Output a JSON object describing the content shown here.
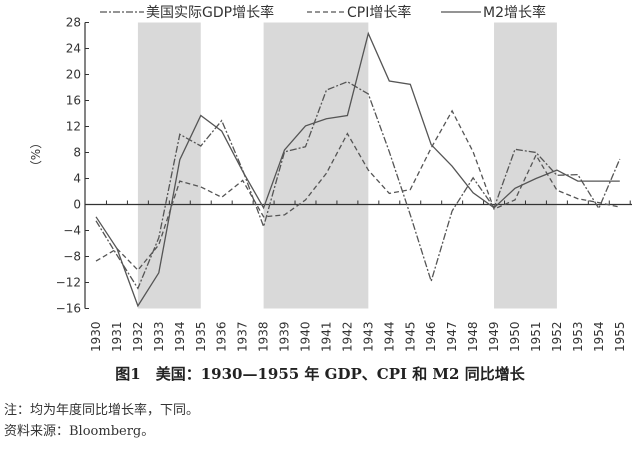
{
  "chart_data": {
    "type": "line",
    "title": "图1　美国：1930—1955 年 GDP、CPI 和 M2 同比增长",
    "xlabel": "",
    "ylabel": "（%）",
    "ylim": [
      -16,
      28
    ],
    "yticks": [
      28,
      24,
      20,
      16,
      12,
      8,
      4,
      0,
      -4,
      -8,
      -12,
      -16
    ],
    "grid": false,
    "legend_position": "top",
    "x": [
      1930,
      1931,
      1932,
      1933,
      1934,
      1935,
      1936,
      1937,
      1938,
      1939,
      1940,
      1941,
      1942,
      1943,
      1944,
      1945,
      1946,
      1947,
      1948,
      1949,
      1950,
      1951,
      1952,
      1953,
      1954,
      1955
    ],
    "shaded_periods": [
      [
        1932,
        1935
      ],
      [
        1938,
        1943
      ],
      [
        1949,
        1952
      ]
    ],
    "series": [
      {
        "name": "美国实际GDP增长率",
        "style": "dash-dot",
        "values": [
          -2.5,
          -7.8,
          -12.9,
          -5.1,
          10.8,
          9.0,
          12.9,
          5.3,
          -3.4,
          8.1,
          8.9,
          17.6,
          18.9,
          17.0,
          8.1,
          -1.6,
          -11.8,
          -1.0,
          4.1,
          -0.5,
          8.5,
          8.0,
          4.5,
          4.6,
          -0.6,
          7.0
        ]
      },
      {
        "name": "CPI增长率",
        "style": "dashed",
        "values": [
          -8.7,
          -6.8,
          -10.1,
          -6.2,
          3.6,
          2.7,
          1.1,
          3.7,
          -1.9,
          -1.6,
          0.7,
          4.8,
          10.9,
          5.3,
          1.7,
          2.3,
          8.7,
          14.4,
          8.1,
          -0.7,
          0.7,
          7.6,
          2.2,
          0.9,
          0.3,
          -0.4
        ]
      },
      {
        "name": "M2增长率",
        "style": "solid",
        "values": [
          -1.9,
          -6.8,
          -15.6,
          -10.5,
          6.9,
          13.7,
          11.3,
          5.1,
          -0.5,
          8.4,
          12.1,
          13.2,
          13.7,
          26.3,
          19.0,
          18.5,
          9.2,
          5.9,
          1.8,
          -0.5,
          2.5,
          4.0,
          5.3,
          3.6,
          3.6,
          3.6
        ]
      }
    ]
  },
  "legend": {
    "gdp": "美国实际GDP增长率",
    "cpi": "CPI增长率",
    "m2": "M2增长率"
  },
  "axis": {
    "y_unit": "（%）"
  },
  "caption": "图1　美国：1930—1955 年 GDP、CPI 和 M2 同比增长",
  "notes": {
    "note": "注：均为年度同比增长率，下同。",
    "source": "资料来源：Bloomberg。"
  },
  "colors": {
    "line": "#555555",
    "shade": "#d9d9d9",
    "axis": "#333333"
  }
}
